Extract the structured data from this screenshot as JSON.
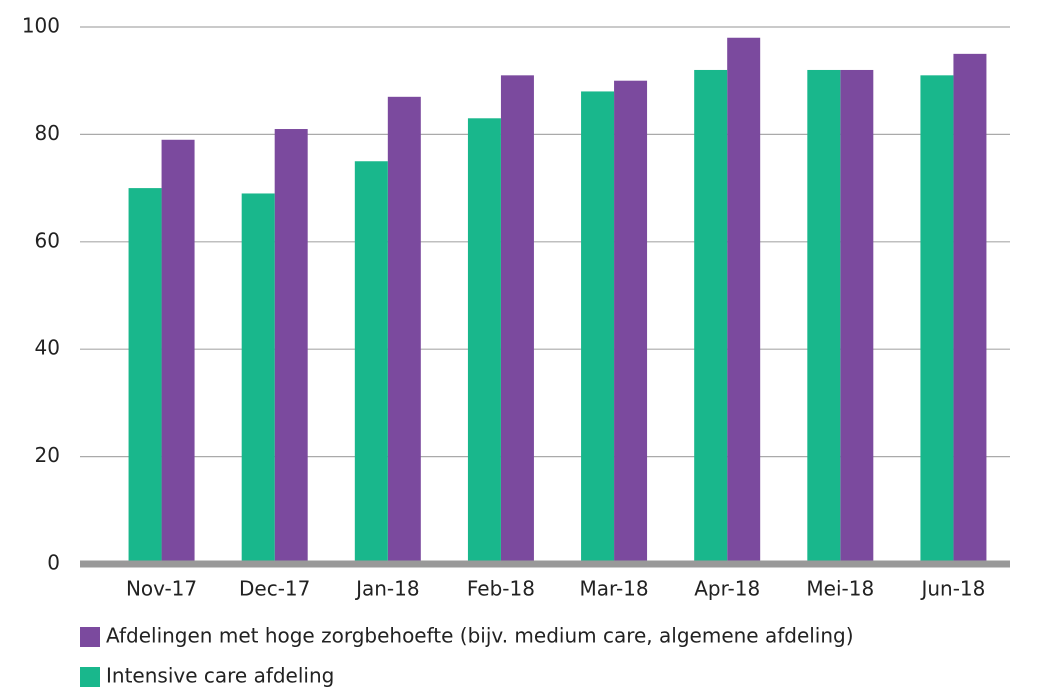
{
  "chart_data": {
    "type": "bar",
    "categories": [
      "Nov-17",
      "Dec-17",
      "Jan-18",
      "Feb-18",
      "Mar-18",
      "Apr-18",
      "Mei-18",
      "Jun-18"
    ],
    "series": [
      {
        "name": "Afdelingen met hoge zorgbehoefte (bijv. medium care, algemene afdeling)",
        "color": "#7b4a9e",
        "values": [
          79,
          81,
          87,
          91,
          90,
          98,
          92,
          95
        ]
      },
      {
        "name": "Intensive care afdeling",
        "color": "#19b78c",
        "values": [
          70,
          69,
          75,
          83,
          88,
          92,
          92,
          91
        ]
      }
    ],
    "ylim": [
      0,
      100
    ],
    "yticks": [
      0,
      20,
      40,
      60,
      80,
      100
    ],
    "grid": true
  }
}
